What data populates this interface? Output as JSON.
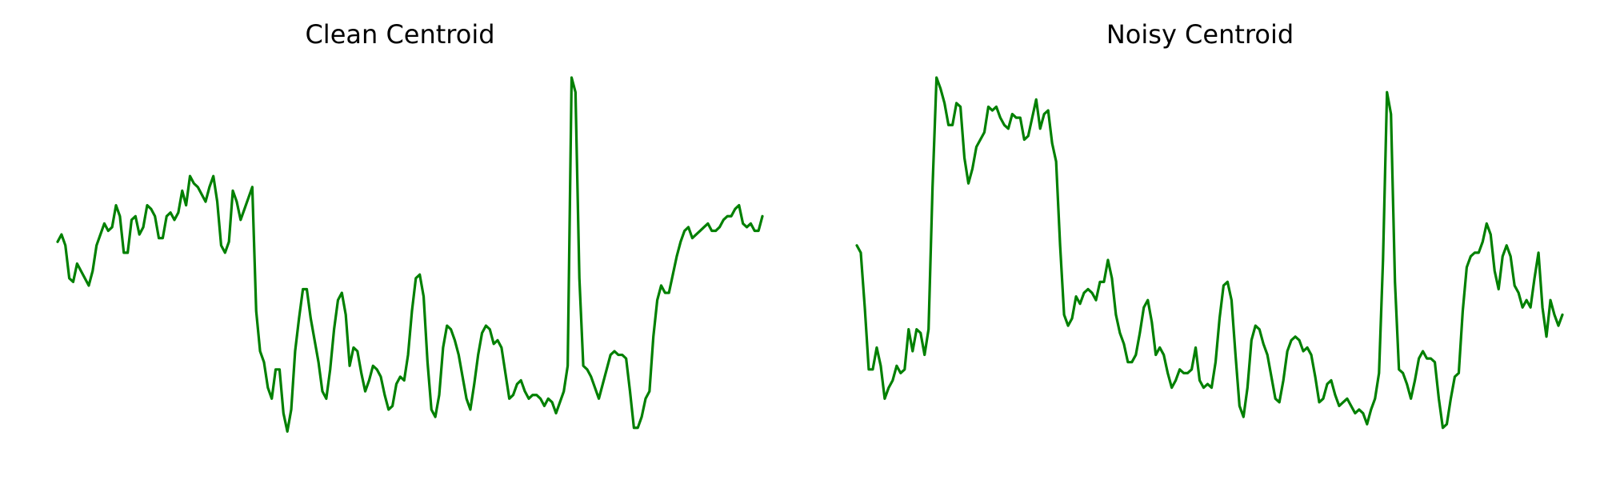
{
  "chart_data": [
    {
      "type": "line",
      "title": "Clean Centroid",
      "xlabel": "",
      "ylabel": "",
      "axes_visible": false,
      "grid": false,
      "ylim": [
        0,
        1
      ],
      "series": [
        {
          "color": "#008000",
          "values": [
            0.55,
            0.57,
            0.54,
            0.45,
            0.44,
            0.49,
            0.47,
            0.45,
            0.43,
            0.47,
            0.54,
            0.57,
            0.6,
            0.58,
            0.59,
            0.65,
            0.62,
            0.52,
            0.52,
            0.61,
            0.62,
            0.57,
            0.59,
            0.65,
            0.64,
            0.62,
            0.56,
            0.56,
            0.62,
            0.63,
            0.61,
            0.63,
            0.69,
            0.65,
            0.73,
            0.71,
            0.7,
            0.68,
            0.66,
            0.7,
            0.73,
            0.66,
            0.54,
            0.52,
            0.55,
            0.69,
            0.66,
            0.61,
            0.64,
            0.67,
            0.7,
            0.36,
            0.25,
            0.22,
            0.15,
            0.12,
            0.2,
            0.2,
            0.08,
            0.03,
            0.09,
            0.25,
            0.34,
            0.42,
            0.42,
            0.34,
            0.28,
            0.22,
            0.14,
            0.12,
            0.2,
            0.31,
            0.39,
            0.41,
            0.35,
            0.21,
            0.26,
            0.25,
            0.19,
            0.14,
            0.17,
            0.21,
            0.2,
            0.18,
            0.13,
            0.09,
            0.1,
            0.16,
            0.18,
            0.17,
            0.24,
            0.36,
            0.45,
            0.46,
            0.4,
            0.22,
            0.09,
            0.07,
            0.13,
            0.26,
            0.32,
            0.31,
            0.28,
            0.24,
            0.18,
            0.12,
            0.09,
            0.16,
            0.24,
            0.3,
            0.32,
            0.31,
            0.27,
            0.28,
            0.26,
            0.19,
            0.12,
            0.13,
            0.16,
            0.17,
            0.14,
            0.12,
            0.13,
            0.13,
            0.12,
            0.1,
            0.12,
            0.11,
            0.08,
            0.11,
            0.14,
            0.21,
            1.0,
            0.96,
            0.45,
            0.21,
            0.2,
            0.18,
            0.15,
            0.12,
            0.16,
            0.2,
            0.24,
            0.25,
            0.24,
            0.24,
            0.23,
            0.14,
            0.04,
            0.04,
            0.07,
            0.12,
            0.14,
            0.29,
            0.39,
            0.43,
            0.41,
            0.41,
            0.46,
            0.51,
            0.55,
            0.58,
            0.59,
            0.56,
            0.57,
            0.58,
            0.59,
            0.6,
            0.58,
            0.58,
            0.59,
            0.61,
            0.62,
            0.62,
            0.64,
            0.65,
            0.6,
            0.59,
            0.6,
            0.58,
            0.58,
            0.62
          ]
        }
      ]
    },
    {
      "type": "line",
      "title": "Noisy Centroid",
      "xlabel": "",
      "ylabel": "",
      "axes_visible": false,
      "grid": false,
      "ylim": [
        0,
        1
      ],
      "series": [
        {
          "color": "#008000",
          "values": [
            0.54,
            0.52,
            0.37,
            0.2,
            0.2,
            0.26,
            0.21,
            0.12,
            0.15,
            0.17,
            0.21,
            0.19,
            0.2,
            0.31,
            0.25,
            0.31,
            0.3,
            0.24,
            0.31,
            0.7,
            1.0,
            0.97,
            0.93,
            0.87,
            0.87,
            0.93,
            0.92,
            0.78,
            0.71,
            0.75,
            0.81,
            0.83,
            0.85,
            0.92,
            0.91,
            0.92,
            0.89,
            0.87,
            0.86,
            0.9,
            0.89,
            0.89,
            0.83,
            0.84,
            0.89,
            0.94,
            0.86,
            0.9,
            0.91,
            0.82,
            0.77,
            0.54,
            0.35,
            0.32,
            0.34,
            0.4,
            0.38,
            0.41,
            0.42,
            0.41,
            0.39,
            0.44,
            0.44,
            0.5,
            0.45,
            0.35,
            0.3,
            0.27,
            0.22,
            0.22,
            0.24,
            0.3,
            0.37,
            0.39,
            0.33,
            0.24,
            0.26,
            0.24,
            0.19,
            0.15,
            0.17,
            0.2,
            0.19,
            0.19,
            0.2,
            0.26,
            0.17,
            0.15,
            0.16,
            0.15,
            0.22,
            0.34,
            0.43,
            0.44,
            0.39,
            0.24,
            0.1,
            0.07,
            0.15,
            0.28,
            0.32,
            0.31,
            0.27,
            0.24,
            0.18,
            0.12,
            0.11,
            0.17,
            0.25,
            0.28,
            0.29,
            0.28,
            0.25,
            0.26,
            0.24,
            0.18,
            0.11,
            0.12,
            0.16,
            0.17,
            0.13,
            0.1,
            0.11,
            0.12,
            0.1,
            0.08,
            0.09,
            0.08,
            0.05,
            0.09,
            0.12,
            0.19,
            0.5,
            0.96,
            0.9,
            0.44,
            0.2,
            0.19,
            0.16,
            0.12,
            0.17,
            0.23,
            0.25,
            0.23,
            0.23,
            0.22,
            0.12,
            0.04,
            0.05,
            0.12,
            0.18,
            0.19,
            0.36,
            0.48,
            0.51,
            0.52,
            0.52,
            0.55,
            0.6,
            0.57,
            0.47,
            0.42,
            0.51,
            0.54,
            0.51,
            0.43,
            0.41,
            0.37,
            0.39,
            0.37,
            0.45,
            0.52,
            0.37,
            0.29,
            0.39,
            0.35,
            0.32,
            0.35
          ]
        }
      ]
    }
  ]
}
